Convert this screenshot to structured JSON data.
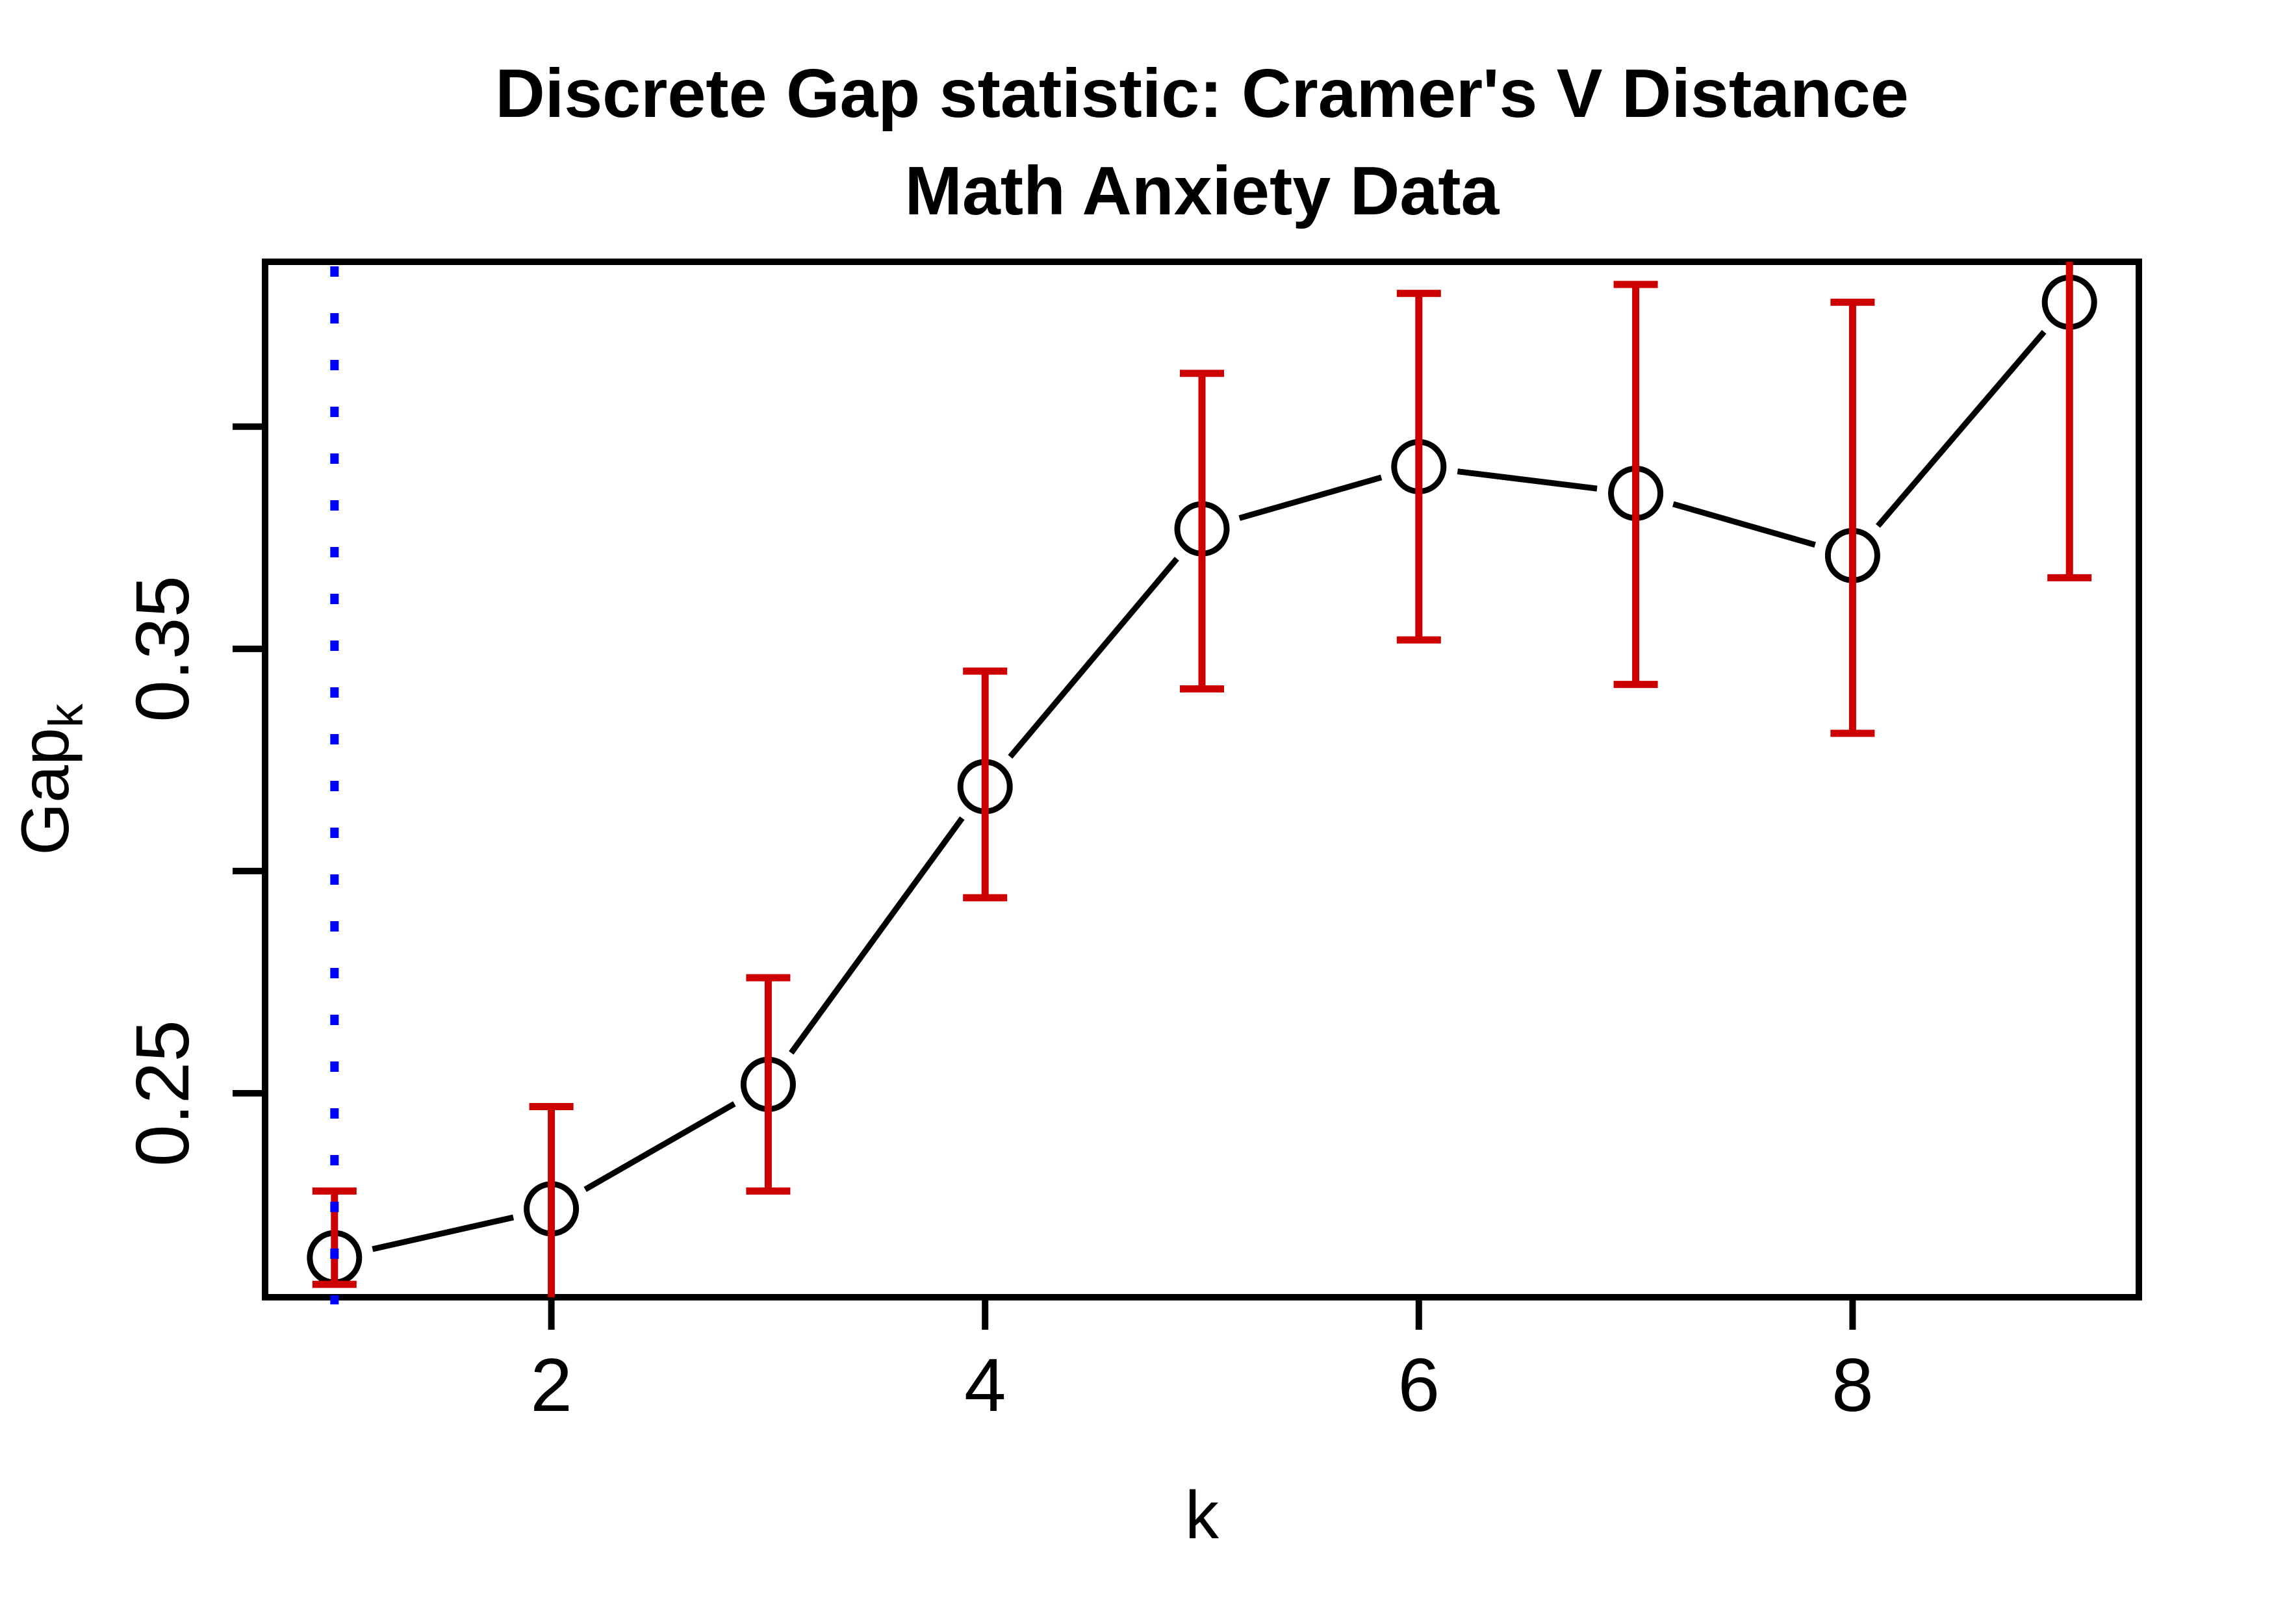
{
  "chart_data": {
    "type": "line",
    "title_line1": "Discrete Gap statistic: Cramer's V Distance",
    "title_line2": "Math Anxiety Data",
    "xlabel": "k",
    "ylabel_main": "Gap",
    "ylabel_sub": "k",
    "x": [
      1,
      2,
      3,
      4,
      5,
      6,
      7,
      8,
      9
    ],
    "series": [
      {
        "name": "Gap statistic",
        "values": [
          0.213,
          0.224,
          0.252,
          0.319,
          0.377,
          0.391,
          0.385,
          0.371,
          0.428
        ],
        "lower": [
          0.207,
          0.202,
          0.228,
          0.294,
          0.341,
          0.352,
          0.342,
          0.331,
          0.366
        ],
        "upper": [
          0.228,
          0.247,
          0.276,
          0.345,
          0.412,
          0.43,
          0.432,
          0.428,
          0.445
        ]
      }
    ],
    "x_range": [
      0.68,
      9.32
    ],
    "y_range": [
      0.2041,
      0.4371
    ],
    "x_ticks": [
      {
        "value": 2,
        "label": "2"
      },
      {
        "value": 4,
        "label": "4"
      },
      {
        "value": 6,
        "label": "6"
      },
      {
        "value": 8,
        "label": "8"
      }
    ],
    "y_ticks": [
      {
        "value": 0.25,
        "label": "0.25"
      },
      {
        "value": 0.3,
        "label": ""
      },
      {
        "value": 0.35,
        "label": "0.35"
      },
      {
        "value": 0.4,
        "label": ""
      }
    ],
    "reference_line": {
      "x": 1,
      "style": "dotted",
      "color": "#0000FF"
    },
    "grid": false,
    "legend": null,
    "marker": "open-circle",
    "colors": {
      "background": "#FFFFFF",
      "line_and_points": "#000000",
      "error_bars": "#CC0000",
      "reference_line": "#0000FF"
    }
  }
}
